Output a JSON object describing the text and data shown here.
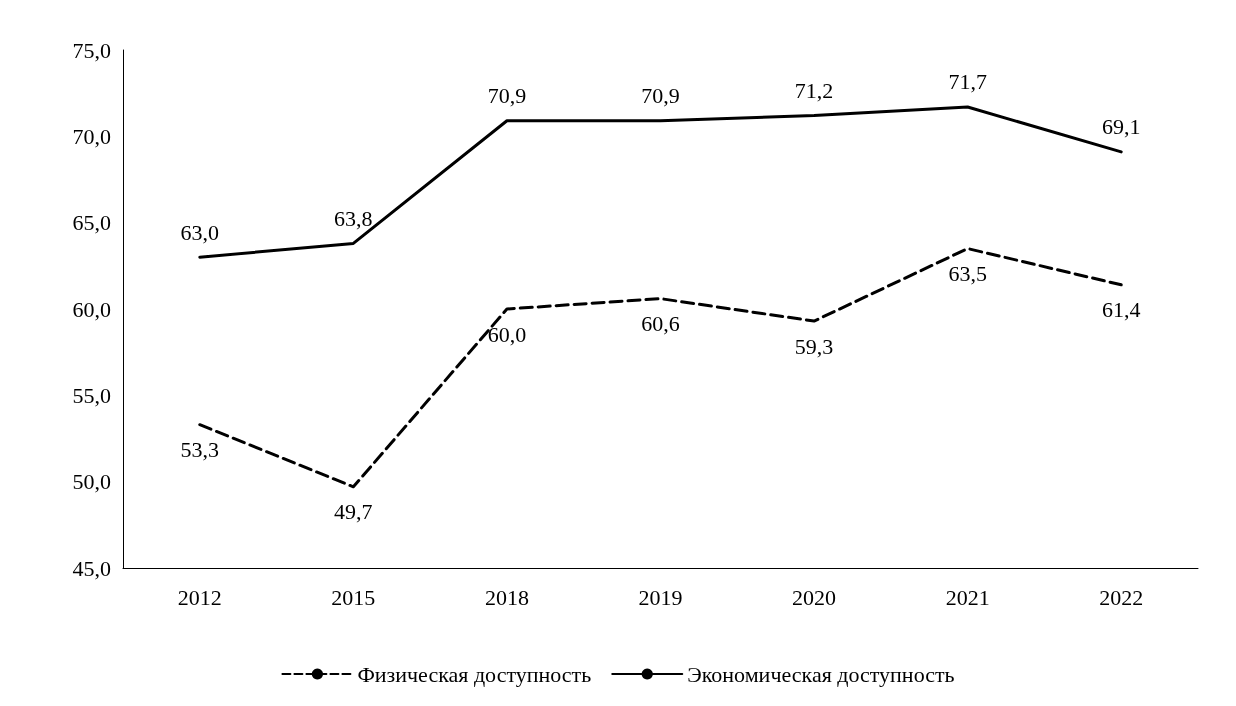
{
  "chart_data": {
    "type": "line",
    "categories": [
      "2012",
      "2015",
      "2018",
      "2019",
      "2020",
      "2021",
      "2022"
    ],
    "series": [
      {
        "name": "Физическая доступность",
        "color": "#000000",
        "line_style": "dashed",
        "values": [
          53.3,
          49.7,
          60.0,
          60.6,
          59.3,
          63.5,
          61.4
        ],
        "value_labels": [
          "53,3",
          "49,7",
          "60,0",
          "60,6",
          "59,3",
          "63,5",
          "61,4"
        ]
      },
      {
        "name": "Экономическая доступность",
        "color": "#000000",
        "line_style": "solid",
        "values": [
          63.0,
          63.8,
          70.9,
          70.9,
          71.2,
          71.7,
          69.1
        ],
        "value_labels": [
          "63,0",
          "63,8",
          "70,9",
          "70,9",
          "71,2",
          "71,7",
          "69,1"
        ]
      }
    ],
    "ylim": [
      45,
      75
    ],
    "yticks": [
      {
        "value": 45,
        "label": "45,0"
      },
      {
        "value": 50,
        "label": "50,0"
      },
      {
        "value": 55,
        "label": "55,0"
      },
      {
        "value": 60,
        "label": "60,0"
      },
      {
        "value": 65,
        "label": "65,0"
      },
      {
        "value": 70,
        "label": "70,0"
      },
      {
        "value": 75,
        "label": "75,0"
      }
    ],
    "grid": false,
    "legend": "bottom",
    "marker": "none"
  }
}
